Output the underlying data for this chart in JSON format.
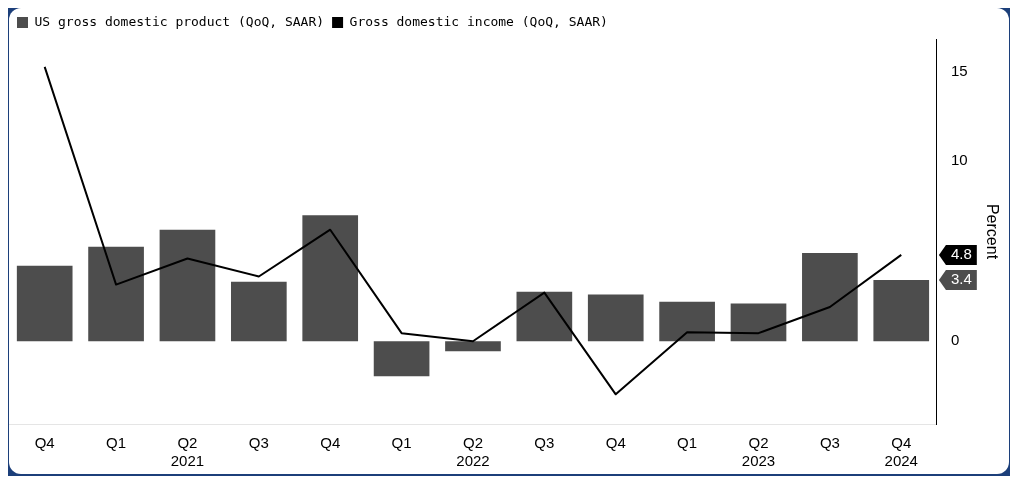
{
  "chart_data": {
    "type": "bar",
    "ylabel": "Percent",
    "categories": [
      "Q4",
      "Q1",
      "Q2\n2021",
      "Q3",
      "Q4",
      "Q1",
      "Q2\n2022",
      "Q3",
      "Q4",
      "Q1",
      "Q2\n2023",
      "Q3",
      "Q4\n2024"
    ],
    "series": [
      {
        "name": "US gross domestic product (QoQ, SAAR)",
        "type": "bar",
        "color": "#4d4d4d",
        "values": [
          4.2,
          5.25,
          6.2,
          3.3,
          7.0,
          -1.95,
          -0.55,
          2.75,
          2.6,
          2.2,
          2.1,
          4.9,
          3.4
        ]
      },
      {
        "name": "Gross domestic income (QoQ, SAAR)",
        "type": "line",
        "color": "#000000",
        "values": [
          15.25,
          3.15,
          4.6,
          3.6,
          6.2,
          0.45,
          0,
          2.7,
          -2.95,
          0.5,
          0.45,
          1.9,
          4.8
        ]
      }
    ],
    "ylim": [
      -4.6,
      16.8
    ],
    "yticks": [
      0,
      3.4,
      4.8,
      10,
      15
    ],
    "grid": false,
    "legend": "top left",
    "marker": "none",
    "line_style": "solid"
  }
}
